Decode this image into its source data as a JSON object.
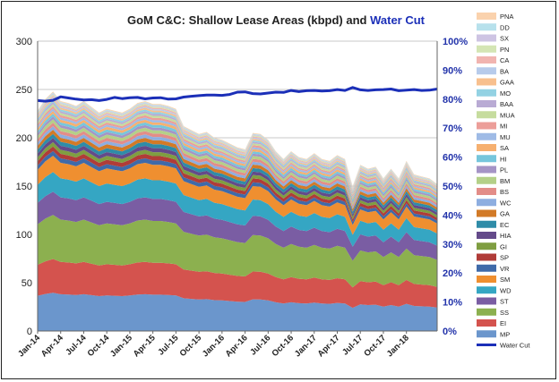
{
  "chart_data": {
    "type": "area",
    "title_part1": "GoM C&C: Shallow Lease Areas (kbpd) and ",
    "title_part2": "Water Cut",
    "title_part2_color": "#1b2fb8",
    "y_left": {
      "ylim": [
        0,
        300
      ],
      "ticks": [
        "0",
        "50",
        "100",
        "150",
        "200",
        "250",
        "300"
      ]
    },
    "y_right": {
      "ylim": [
        0,
        100
      ],
      "ticks": [
        "0%",
        "10%",
        "20%",
        "30%",
        "40%",
        "50%",
        "60%",
        "70%",
        "80%",
        "90%",
        "100%"
      ]
    },
    "x_tick_labels": [
      "Jan-14",
      "Apr-14",
      "Jul-14",
      "Oct-14",
      "Jan-15",
      "Apr-15",
      "Jul-15",
      "Oct-15",
      "Jan-16",
      "Apr-16",
      "Jul-16",
      "Oct-16",
      "Jan-17",
      "Apr-17",
      "Jul-17",
      "Oct-17",
      "Jan-18"
    ],
    "grid": true,
    "legend_position": "right",
    "total_kbpd": [
      228,
      240,
      248,
      238,
      236,
      233,
      238,
      232,
      226,
      230,
      228,
      226,
      230,
      236,
      238,
      235,
      235,
      233,
      230,
      212,
      208,
      204,
      206,
      200,
      198,
      194,
      190,
      188,
      205,
      204,
      198,
      186,
      178,
      186,
      180,
      178,
      184,
      178,
      176,
      182,
      178,
      150,
      172,
      168,
      170,
      158,
      168,
      158,
      176,
      162,
      160,
      158,
      152
    ],
    "water_cut": [
      79.5,
      79.3,
      79.6,
      80.8,
      80.4,
      80.0,
      79.7,
      79.8,
      79.5,
      79.9,
      80.6,
      80.2,
      80.5,
      80.6,
      80.1,
      80.4,
      80.5,
      80.0,
      80.1,
      80.7,
      81.0,
      81.2,
      81.4,
      81.4,
      81.3,
      81.6,
      82.4,
      82.5,
      81.9,
      81.8,
      82.1,
      82.4,
      82.3,
      83.0,
      82.6,
      82.9,
      83.0,
      82.8,
      82.9,
      83.3,
      83.0,
      84.0,
      83.2,
      83.0,
      83.2,
      83.3,
      83.5,
      82.9,
      83.1,
      83.3,
      83.0,
      83.1,
      83.5
    ],
    "series": [
      {
        "name": "MP",
        "color": "#6b96cc",
        "share": 0.165
      },
      {
        "name": "EI",
        "color": "#d4534e",
        "share": 0.145
      },
      {
        "name": "SS",
        "color": "#8cb04f",
        "share": 0.19
      },
      {
        "name": "ST",
        "color": "#7a5da3",
        "share": 0.1
      },
      {
        "name": "WD",
        "color": "#35a6c3",
        "share": 0.085
      },
      {
        "name": "SM",
        "color": "#ef8f30",
        "share": 0.07
      },
      {
        "name": "VR",
        "color": "#3f6aa9",
        "share": 0.02
      },
      {
        "name": "SP",
        "color": "#b03c38",
        "share": 0.02
      },
      {
        "name": "GI",
        "color": "#7f9e41",
        "share": 0.018
      },
      {
        "name": "HIA",
        "color": "#644a8a",
        "share": 0.018
      },
      {
        "name": "EC",
        "color": "#2f8ca8",
        "share": 0.018
      },
      {
        "name": "GA",
        "color": "#d27a27",
        "share": 0.018
      },
      {
        "name": "WC",
        "color": "#8eaee0",
        "share": 0.015
      },
      {
        "name": "BS",
        "color": "#e38d88",
        "share": 0.015
      },
      {
        "name": "BM",
        "color": "#b4d088",
        "share": 0.015
      },
      {
        "name": "PL",
        "color": "#a594c6",
        "share": 0.012
      },
      {
        "name": "HI",
        "color": "#76c6dc",
        "share": 0.012
      },
      {
        "name": "SA",
        "color": "#f6b070",
        "share": 0.012
      },
      {
        "name": "MU",
        "color": "#9fbbe6",
        "share": 0.01
      },
      {
        "name": "MI",
        "color": "#ec9e99",
        "share": 0.01
      },
      {
        "name": "MUA",
        "color": "#c6dc9e",
        "share": 0.01
      },
      {
        "name": "BAA",
        "color": "#b9abd4",
        "share": 0.008
      },
      {
        "name": "MO",
        "color": "#93d2e3",
        "share": 0.008
      },
      {
        "name": "GAA",
        "color": "#f8c08e",
        "share": 0.008
      },
      {
        "name": "BA",
        "color": "#b7cbeb",
        "share": 0.006
      },
      {
        "name": "CA",
        "color": "#f1b4b0",
        "share": 0.006
      },
      {
        "name": "PN",
        "color": "#d4e5b4",
        "share": 0.006
      },
      {
        "name": "SX",
        "color": "#cec4e3",
        "share": 0.004
      },
      {
        "name": "DD",
        "color": "#b7e1ec",
        "share": 0.004
      },
      {
        "name": "PNA",
        "color": "#fad2ad",
        "share": 0.004
      }
    ],
    "water_cut_series": {
      "name": "Water Cut",
      "color": "#1b2fb8"
    }
  }
}
